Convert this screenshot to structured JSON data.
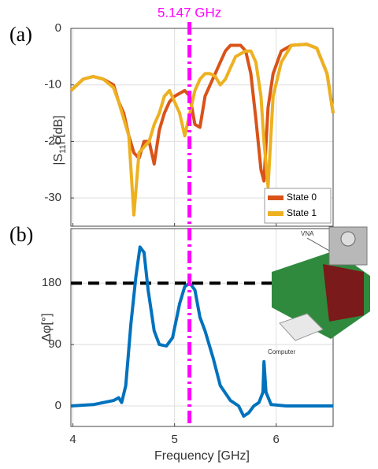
{
  "chart_data": [
    {
      "type": "line",
      "panel_label": "(a)",
      "ylabel_parts": [
        "|S",
        "11",
        "| [dB]"
      ],
      "x": [
        3.98,
        4.1,
        4.2,
        4.3,
        4.4,
        4.45,
        4.5,
        4.55,
        4.6,
        4.65,
        4.7,
        4.75,
        4.8,
        4.85,
        4.9,
        4.95,
        5.0,
        5.05,
        5.1,
        5.15,
        5.2,
        5.25,
        5.3,
        5.35,
        5.4,
        5.45,
        5.5,
        5.55,
        5.6,
        5.65,
        5.7,
        5.75,
        5.8,
        5.85,
        5.88,
        5.92,
        5.97,
        6.05,
        6.15,
        6.3,
        6.4,
        6.5,
        6.56
      ],
      "series": [
        {
          "name": "State 0",
          "color": "#d95319",
          "values": [
            -11,
            -9,
            -8.5,
            -9,
            -10,
            -13,
            -15,
            -19,
            -22,
            -23,
            -20,
            -20,
            -24,
            -18,
            -15,
            -13,
            -12,
            -11.5,
            -11,
            -12,
            -17,
            -17.5,
            -12,
            -10,
            -8,
            -6,
            -4,
            -3,
            -3,
            -3,
            -4,
            -8,
            -16,
            -25,
            -27,
            -14,
            -8,
            -4,
            -3,
            -2.8,
            -3.5,
            -8,
            -15
          ]
        },
        {
          "name": "State 1",
          "color": "#edb120",
          "values": [
            -11,
            -9,
            -8.5,
            -9,
            -10.5,
            -13,
            -16,
            -19,
            -33,
            -22,
            -21,
            -20,
            -17,
            -15,
            -12,
            -11,
            -13,
            -15,
            -19,
            -15,
            -11,
            -9,
            -8,
            -8,
            -8.5,
            -10,
            -9,
            -7,
            -5,
            -4.5,
            -4,
            -4,
            -6,
            -12,
            -20,
            -28,
            -12,
            -6,
            -3,
            -2.8,
            -3.5,
            -8,
            -15
          ]
        }
      ],
      "xlim": [
        3.98,
        6.56
      ],
      "xticks": [
        4,
        5,
        6
      ],
      "ylim": [
        -35,
        0
      ],
      "yticks": [
        0,
        -10,
        -20,
        -30
      ],
      "grid": true,
      "legend": "lower right",
      "vline": 5.147,
      "vline_label": "5.147 GHz",
      "vline_color": "#ff00ff"
    },
    {
      "type": "line",
      "panel_label": "(b)",
      "ylabel": "Δφ[°]",
      "xlabel": "Frequency [GHz]",
      "x": [
        3.98,
        4.2,
        4.4,
        4.45,
        4.48,
        4.52,
        4.57,
        4.62,
        4.66,
        4.7,
        4.74,
        4.8,
        4.85,
        4.92,
        4.98,
        5.05,
        5.1,
        5.15,
        5.2,
        5.25,
        5.3,
        5.38,
        5.45,
        5.55,
        5.63,
        5.68,
        5.73,
        5.78,
        5.83,
        5.87,
        5.88,
        5.9,
        5.95,
        6.1,
        6.3,
        6.56
      ],
      "series": [
        {
          "name": "Δφ",
          "color": "#0072bd",
          "values": [
            0,
            2,
            8,
            12,
            5,
            30,
            120,
            190,
            233,
            225,
            170,
            110,
            90,
            88,
            100,
            150,
            175,
            180,
            170,
            130,
            110,
            70,
            30,
            8,
            0,
            -15,
            -10,
            0,
            5,
            20,
            65,
            20,
            2,
            0,
            0,
            0
          ]
        }
      ],
      "xlim": [
        3.98,
        6.56
      ],
      "xticks": [
        4,
        5,
        6
      ],
      "ylim": [
        -30,
        260
      ],
      "yticks": [
        0,
        90,
        180
      ],
      "grid": true,
      "hline": 180,
      "hline_color": "#000000",
      "inset_labels": [
        "VNA",
        "Computer"
      ]
    }
  ]
}
